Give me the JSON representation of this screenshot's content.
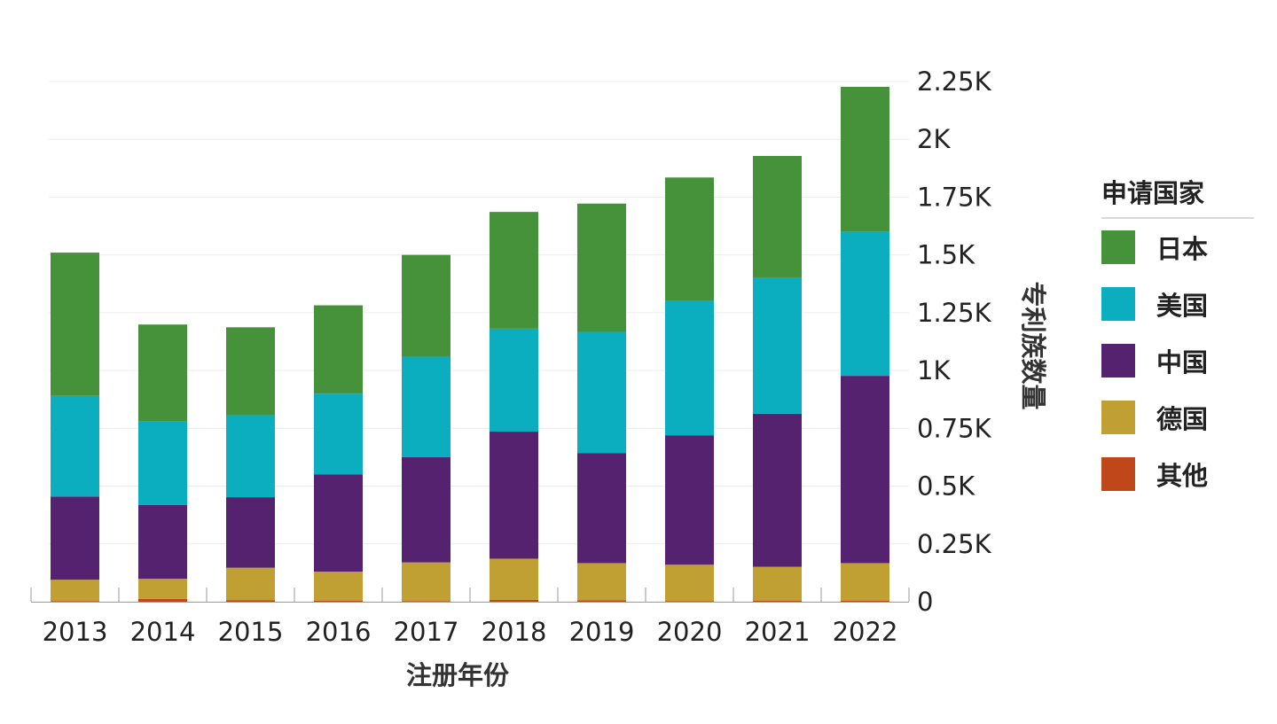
{
  "chart_data": {
    "type": "bar",
    "stacked": true,
    "categories": [
      "2013",
      "2014",
      "2015",
      "2016",
      "2017",
      "2018",
      "2019",
      "2020",
      "2021",
      "2022"
    ],
    "series": [
      {
        "name": "其他",
        "color": "#c0471a",
        "values": [
          3,
          12,
          7,
          4,
          3,
          8,
          6,
          2,
          5,
          4
        ]
      },
      {
        "name": "德国",
        "color": "#c0a032",
        "values": [
          92,
          87,
          140,
          126,
          167,
          178,
          161,
          158,
          146,
          163
        ]
      },
      {
        "name": "中国",
        "color": "#55226f",
        "values": [
          360,
          320,
          305,
          420,
          455,
          550,
          475,
          560,
          662,
          810
        ]
      },
      {
        "name": "美国",
        "color": "#0aaebe",
        "values": [
          435,
          360,
          355,
          350,
          435,
          445,
          525,
          580,
          590,
          625
        ]
      },
      {
        "name": "日本",
        "color": "#45923a",
        "values": [
          620,
          420,
          380,
          382,
          440,
          505,
          555,
          535,
          525,
          625
        ]
      }
    ],
    "xlabel": "注册年份",
    "ylabel": "专利族数量",
    "ylim": [
      0,
      2250
    ],
    "yticks": [
      0,
      250,
      500,
      750,
      1000,
      1250,
      1500,
      1750,
      2000,
      2250
    ],
    "ytick_labels": [
      "0",
      "0.25K",
      "0.5K",
      "0.75K",
      "1K",
      "1.25K",
      "1.5K",
      "1.75K",
      "2K",
      "2.25K"
    ],
    "y_axis_position": "right",
    "grid": true,
    "legend_position": "right"
  },
  "legend": {
    "title": "申请国家",
    "items": [
      {
        "label": "日本",
        "color": "#45923a"
      },
      {
        "label": "美国",
        "color": "#0aaebe"
      },
      {
        "label": "中国",
        "color": "#55226f"
      },
      {
        "label": "德国",
        "color": "#c0a032"
      },
      {
        "label": "其他",
        "color": "#c0471a"
      }
    ]
  }
}
